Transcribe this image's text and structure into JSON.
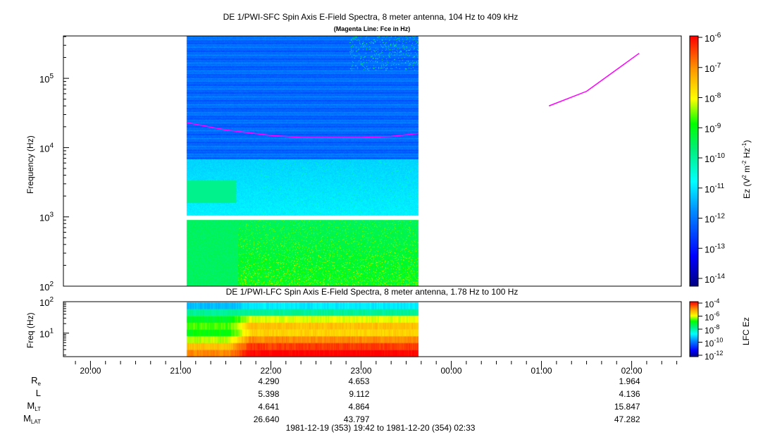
{
  "chart_data": [
    {
      "type": "heatmap",
      "title": "DE 1/PWI-SFC  Spin Axis E-Field Spectra, 8 meter antenna, 104 Hz to 409 kHz",
      "subtitle": "(Magenta Line: Fce in Hz)",
      "ylabel": "Frequency (Hz)",
      "yscale": "log",
      "ylim": [
        100,
        409000
      ],
      "yticks": [
        "10^2",
        "10^3",
        "10^4",
        "10^5"
      ],
      "data_time_range": [
        "21:04",
        "23:38"
      ],
      "colorbar": {
        "label": "Ez (V^2 m^-2 Hz^-1)",
        "scale": "log",
        "range": [
          3e-15,
          1e-06
        ],
        "ticks": [
          "10^-6",
          "10^-7",
          "10^-8",
          "10^-9",
          "10^-10",
          "10^-11",
          "10^-12",
          "10^-13",
          "10^-14"
        ]
      },
      "overlay": {
        "name": "Fce",
        "color": "#ff00ff",
        "points": [
          [
            "21:04",
            23000
          ],
          [
            "21:30",
            18000
          ],
          [
            "22:00",
            15000
          ],
          [
            "22:20",
            14000
          ],
          [
            "22:40",
            14000
          ],
          [
            "23:00",
            14000
          ],
          [
            "23:20",
            14500
          ],
          [
            "23:38",
            16000
          ],
          [
            "01:05",
            40000
          ],
          [
            "01:30",
            65000
          ],
          [
            "02:05",
            230000
          ]
        ]
      }
    },
    {
      "type": "heatmap",
      "title": "DE 1/PWI-LFC  Spin Axis E-Field Spectra, 8 meter antenna, 1.78 Hz to 100 Hz",
      "ylabel": "Freq (Hz)",
      "yscale": "log",
      "ylim": [
        1.78,
        100
      ],
      "yticks": [
        "10^1",
        "10^2"
      ],
      "data_time_range": [
        "21:04",
        "23:38"
      ],
      "colorbar": {
        "label": "LFC Ez",
        "scale": "log",
        "range": [
          1e-12,
          0.0001
        ],
        "ticks": [
          "10^-4",
          "10^-6",
          "10^-8",
          "10^-10",
          "10^-12"
        ]
      }
    }
  ],
  "xaxis": {
    "ticks": [
      "20:00",
      "21:00",
      "22:00",
      "23:00",
      "00:00",
      "01:00",
      "02:00"
    ],
    "range": [
      "19:42",
      "02:33"
    ]
  },
  "ephemeris": {
    "labels": [
      "Re",
      "L",
      "MLT",
      "MLAT"
    ],
    "columns": [
      {
        "time": "22:00",
        "values": [
          "4.290",
          "5.398",
          "4.641",
          "26.640"
        ]
      },
      {
        "time": "23:00",
        "values": [
          "4.653",
          "9.112",
          "4.864",
          "43.797"
        ]
      },
      {
        "time": "02:00",
        "values": [
          "1.964",
          "4.136",
          "15.847",
          "47.282"
        ]
      }
    ]
  },
  "footer": "1981-12-19 (353) 19:42 to 1981-12-20 (354) 02:33",
  "labels": {
    "t1": "DE 1/PWI-SFC  Spin Axis E-Field Spectra, 8 meter antenna, 104 Hz to 409 kHz",
    "t2": "(Magenta Line: Fce in Hz)",
    "t3": "DE 1/PWI-LFC  Spin Axis E-Field Spectra, 8 meter antenna, 1.78 Hz to 100 Hz",
    "y1": "Frequency (Hz)",
    "y2": "Freq (Hz)",
    "cb2": "LFC Ez"
  }
}
